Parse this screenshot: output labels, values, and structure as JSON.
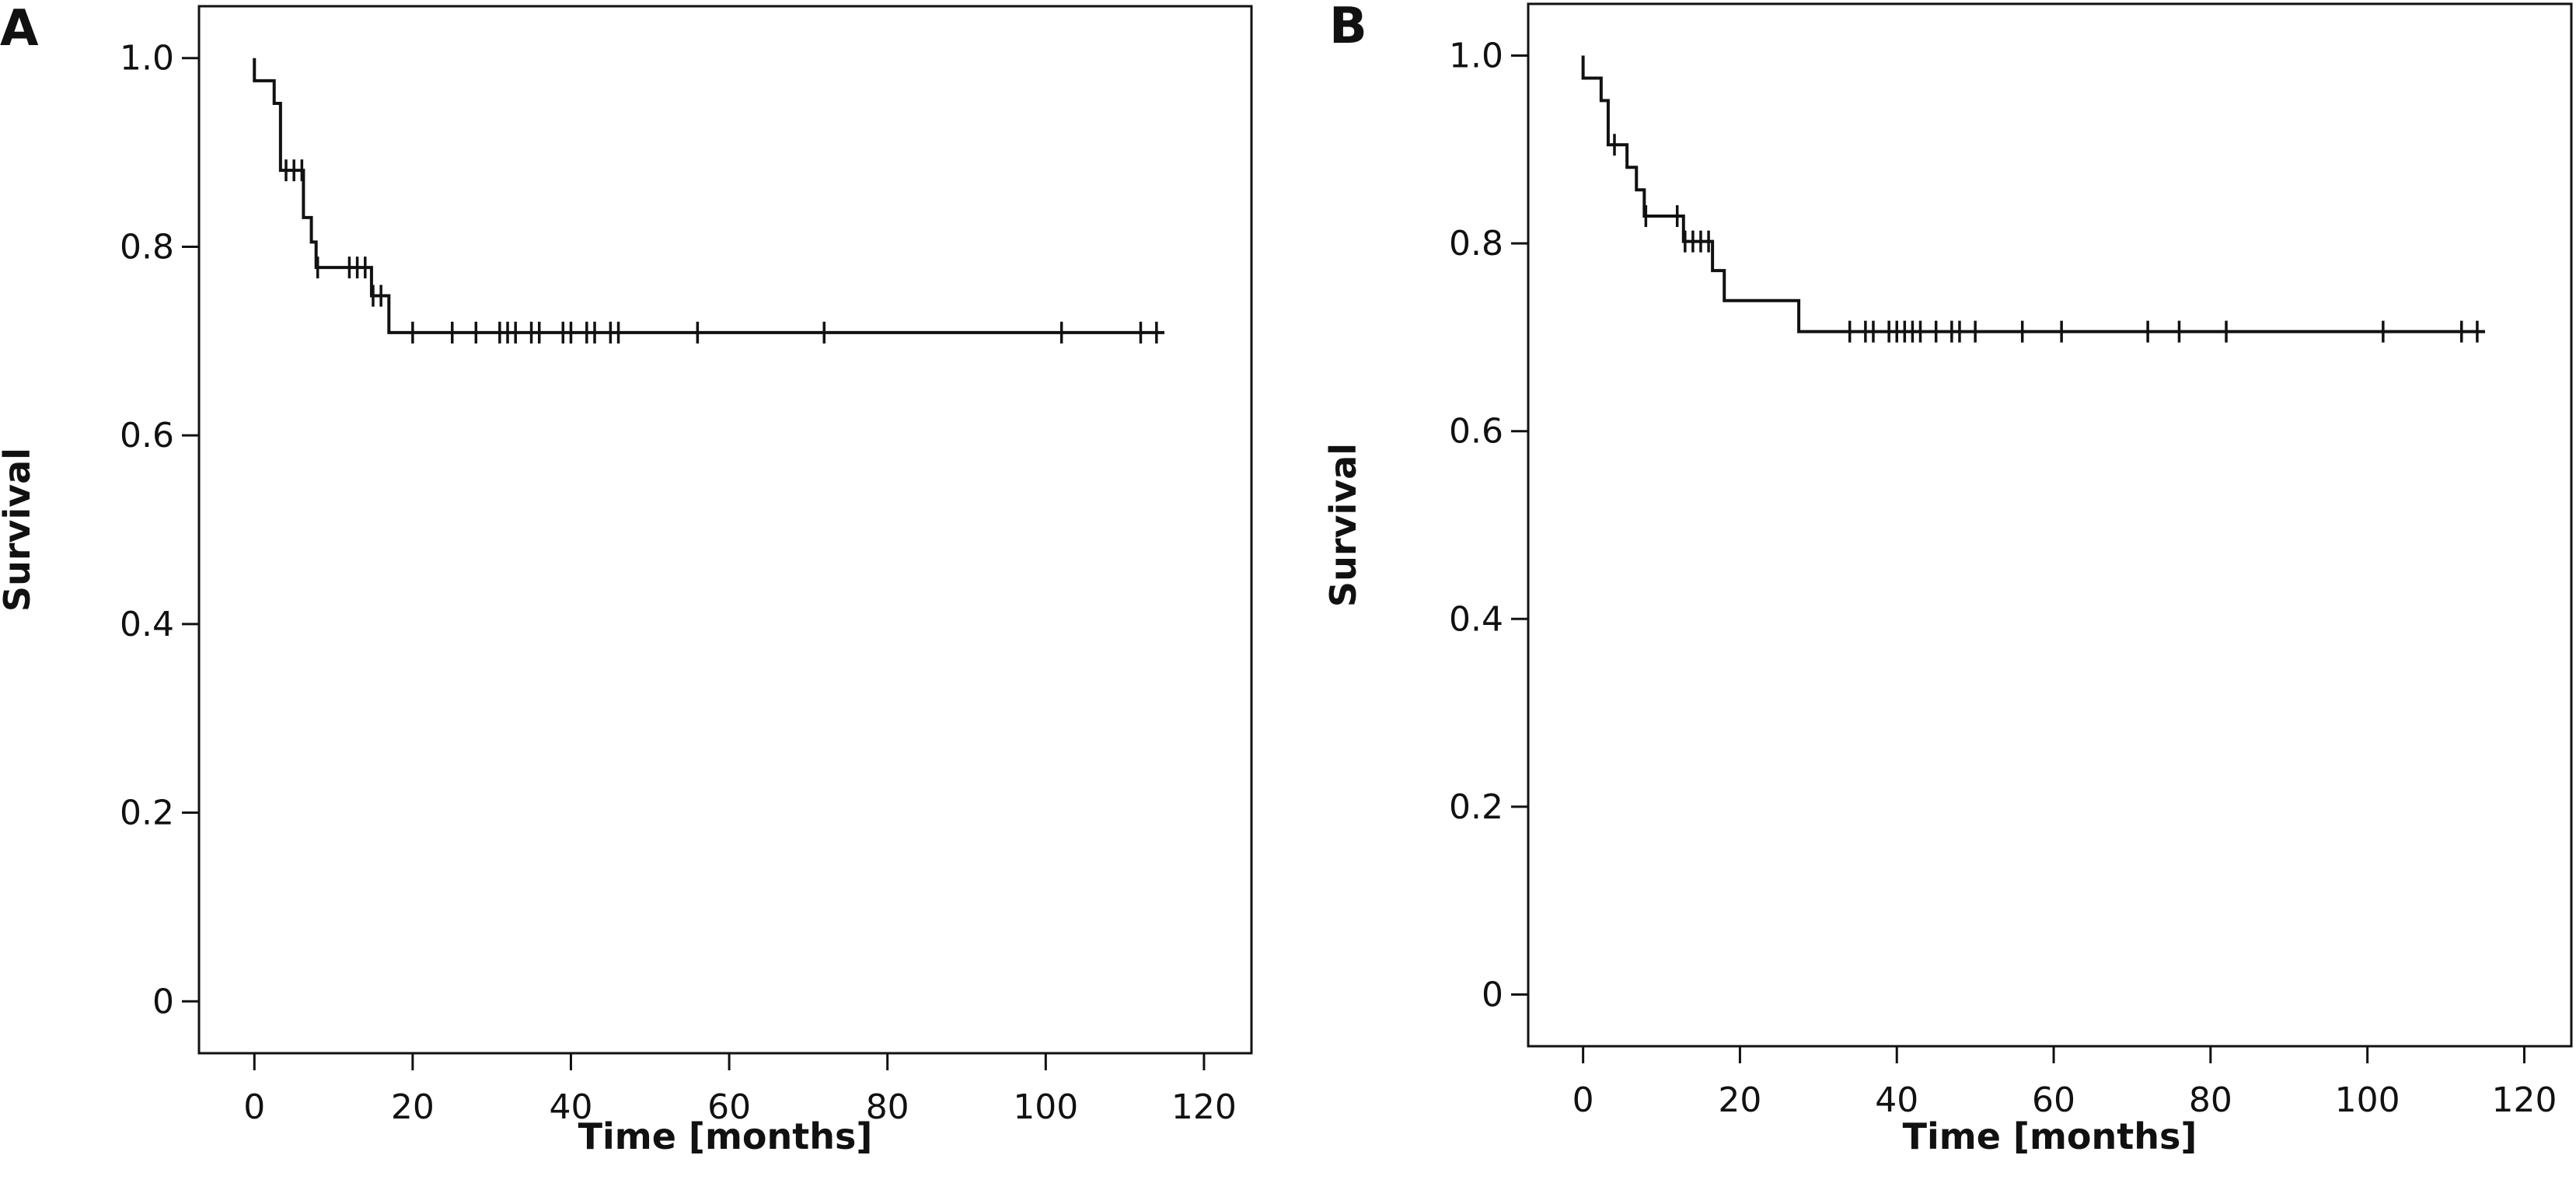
{
  "chart_data": [
    {
      "type": "line",
      "panel_label": "A",
      "title": "",
      "xlabel": "Time [months]",
      "ylabel": "Survival",
      "xlim": [
        -7,
        126
      ],
      "ylim": [
        -0.055,
        1.055
      ],
      "x_ticks": [
        0,
        20,
        40,
        60,
        80,
        100,
        120
      ],
      "y_ticks": [
        0,
        0.2,
        0.4,
        0.6,
        0.8,
        1.0
      ],
      "x_tick_labels": [
        "0",
        "20",
        "40",
        "60",
        "80",
        "100",
        "120"
      ],
      "y_tick_labels": [
        "0",
        "0.2",
        "0.4",
        "0.6",
        "0.8",
        "1.0"
      ],
      "grid": false,
      "legend": "none",
      "series": [
        {
          "step_function": [
            {
              "time": 0,
              "survival": 1.0
            },
            {
              "time": 0,
              "survival": 0.976
            },
            {
              "time": 2.5,
              "survival": 0.952
            },
            {
              "time": 3.3,
              "survival": 0.881
            },
            {
              "time": 6.2,
              "survival": 0.831
            },
            {
              "time": 7.2,
              "survival": 0.805
            },
            {
              "time": 7.8,
              "survival": 0.778
            },
            {
              "time": 14.8,
              "survival": 0.748
            },
            {
              "time": 17,
              "survival": 0.709
            }
          ],
          "curve_end_time": 115,
          "censored_times": [
            4,
            5,
            6,
            8,
            12,
            13,
            14,
            15,
            16,
            20,
            25,
            28,
            31,
            32,
            33,
            35,
            36,
            39,
            40,
            42,
            43,
            45,
            46,
            56,
            72,
            102,
            112,
            114
          ]
        }
      ]
    },
    {
      "type": "line",
      "panel_label": "B",
      "title": "",
      "xlabel": "Time [months]",
      "ylabel": "Survival",
      "xlim": [
        -7,
        126
      ],
      "ylim": [
        -0.055,
        1.055
      ],
      "x_ticks": [
        0,
        20,
        40,
        60,
        80,
        100,
        120
      ],
      "y_ticks": [
        0,
        0.2,
        0.4,
        0.6,
        0.8,
        1.0
      ],
      "x_tick_labels": [
        "0",
        "20",
        "40",
        "60",
        "80",
        "100",
        "120"
      ],
      "y_tick_labels": [
        "0",
        "0.2",
        "0.4",
        "0.6",
        "0.8",
        "1.0"
      ],
      "grid": false,
      "legend": "none",
      "series": [
        {
          "step_function": [
            {
              "time": 0,
              "survival": 1.0
            },
            {
              "time": 0,
              "survival": 0.976
            },
            {
              "time": 2.3,
              "survival": 0.952
            },
            {
              "time": 3.2,
              "survival": 0.905
            },
            {
              "time": 5.6,
              "survival": 0.881
            },
            {
              "time": 6.8,
              "survival": 0.857
            },
            {
              "time": 7.8,
              "survival": 0.829
            },
            {
              "time": 12.8,
              "survival": 0.802
            },
            {
              "time": 16.5,
              "survival": 0.771
            },
            {
              "time": 18,
              "survival": 0.739
            },
            {
              "time": 27.5,
              "survival": 0.706
            }
          ],
          "curve_end_time": 115,
          "censored_times": [
            4,
            8,
            12,
            13,
            14,
            15,
            16,
            34,
            36,
            37,
            39,
            40,
            41,
            42,
            43,
            45,
            47,
            48,
            50,
            56,
            61,
            72,
            76,
            82,
            102,
            112,
            114
          ]
        }
      ]
    }
  ]
}
